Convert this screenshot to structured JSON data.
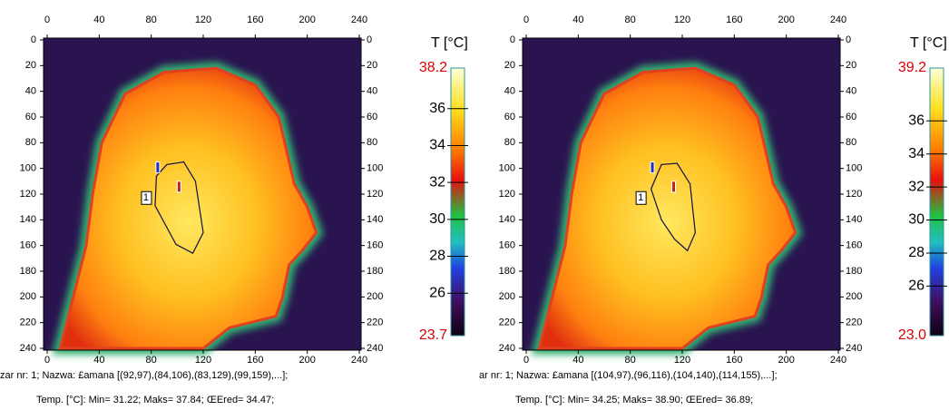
{
  "panels": [
    {
      "x_ticks": [
        "0",
        "40",
        "80",
        "120",
        "160",
        "200",
        "240"
      ],
      "y_ticks": [
        "0",
        "20",
        "40",
        "60",
        "80",
        "100",
        "120",
        "140",
        "160",
        "180",
        "200",
        "220",
        "240"
      ],
      "scale_title": "T [°C]",
      "scale_max": "38.2",
      "scale_min": "23.7",
      "scale_ticks": [
        "36",
        "34",
        "32",
        "30",
        "28",
        "26"
      ],
      "marker_label": "1",
      "caption_line1": "zar nr: 1; Nazwa: £amana [(92,97),(84,106),(83,129),(99,159),...];",
      "caption_line2": "Temp. [°C]: Min= 31.22; Maks= 37.84; ŒEred= 34.47;"
    },
    {
      "x_ticks": [
        "0",
        "40",
        "80",
        "120",
        "160",
        "200",
        "240"
      ],
      "y_ticks": [
        "0",
        "20",
        "40",
        "60",
        "80",
        "100",
        "120",
        "140",
        "160",
        "180",
        "200",
        "220",
        "240"
      ],
      "scale_title": "T [°C]",
      "scale_max": "39.2",
      "scale_min": "23.0",
      "scale_ticks": [
        "36",
        "34",
        "32",
        "30",
        "28",
        "26"
      ],
      "marker_label": "1",
      "caption_line1": "ar nr: 1; Nazwa: £amana [(104,97),(96,116),(104,140),(114,155),...];",
      "caption_line2": "Temp. [°C]: Min= 34.25; Maks= 38.90; ŒEred= 36.89;"
    }
  ]
}
